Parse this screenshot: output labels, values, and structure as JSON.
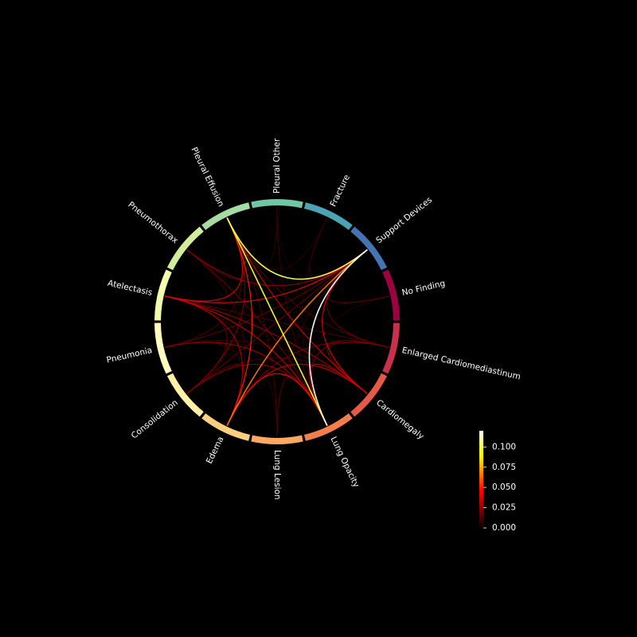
{
  "chart_data": {
    "type": "chord",
    "title": "",
    "nodes": [
      {
        "name": "No Finding",
        "color": "#9e0142"
      },
      {
        "name": "Enlarged Cardiomediastinum",
        "color": "#c9304b"
      },
      {
        "name": "Cardiomegaly",
        "color": "#e45a47"
      },
      {
        "name": "Lung Opacity",
        "color": "#f47e4b"
      },
      {
        "name": "Lung Lesion",
        "color": "#fba962"
      },
      {
        "name": "Edema",
        "color": "#fecf7e"
      },
      {
        "name": "Consolidation",
        "color": "#fff0a4"
      },
      {
        "name": "Pneumonia",
        "color": "#fffebe"
      },
      {
        "name": "Atelectasis",
        "color": "#f3fbad"
      },
      {
        "name": "Pneumothorax",
        "color": "#d3ee9b"
      },
      {
        "name": "Pleural Effusion",
        "color": "#a6dba4"
      },
      {
        "name": "Pleural Other",
        "color": "#71c7a4"
      },
      {
        "name": "Fracture",
        "color": "#4ba3b3"
      },
      {
        "name": "Support Devices",
        "color": "#4474b4"
      }
    ],
    "links": [
      {
        "source": "Lung Opacity",
        "target": "Support Devices",
        "value": 0.12
      },
      {
        "source": "Pleural Effusion",
        "target": "Support Devices",
        "value": 0.1
      },
      {
        "source": "Lung Opacity",
        "target": "Pleural Effusion",
        "value": 0.095
      },
      {
        "source": "Edema",
        "target": "Support Devices",
        "value": 0.065
      },
      {
        "source": "Edema",
        "target": "Pleural Effusion",
        "value": 0.05
      },
      {
        "source": "Edema",
        "target": "Lung Opacity",
        "value": 0.045
      },
      {
        "source": "Atelectasis",
        "target": "Support Devices",
        "value": 0.042
      },
      {
        "source": "Cardiomegaly",
        "target": "Support Devices",
        "value": 0.04
      },
      {
        "source": "Atelectasis",
        "target": "Pleural Effusion",
        "value": 0.038
      },
      {
        "source": "Cardiomegaly",
        "target": "Pleural Effusion",
        "value": 0.036
      },
      {
        "source": "Lung Opacity",
        "target": "Atelectasis",
        "value": 0.034
      },
      {
        "source": "Cardiomegaly",
        "target": "Edema",
        "value": 0.03
      },
      {
        "source": "Cardiomegaly",
        "target": "Lung Opacity",
        "value": 0.03
      },
      {
        "source": "Edema",
        "target": "Atelectasis",
        "value": 0.028
      },
      {
        "source": "Cardiomegaly",
        "target": "Atelectasis",
        "value": 0.026
      },
      {
        "source": "Lung Opacity",
        "target": "Pneumonia",
        "value": 0.024
      },
      {
        "source": "Lung Opacity",
        "target": "Consolidation",
        "value": 0.022
      },
      {
        "source": "Pneumothorax",
        "target": "Support Devices",
        "value": 0.022
      },
      {
        "source": "Consolidation",
        "target": "Pleural Effusion",
        "value": 0.02
      },
      {
        "source": "Enlarged Cardiomediastinum",
        "target": "Lung Opacity",
        "value": 0.018
      },
      {
        "source": "Enlarged Cardiomediastinum",
        "target": "Edema",
        "value": 0.018
      },
      {
        "source": "Enlarged Cardiomediastinum",
        "target": "Cardiomegaly",
        "value": 0.018
      },
      {
        "source": "Enlarged Cardiomediastinum",
        "target": "Support Devices",
        "value": 0.016
      },
      {
        "source": "Lung Opacity",
        "target": "Pneumothorax",
        "value": 0.016
      },
      {
        "source": "Pneumonia",
        "target": "Support Devices",
        "value": 0.015
      },
      {
        "source": "Consolidation",
        "target": "Support Devices",
        "value": 0.015
      },
      {
        "source": "Consolidation",
        "target": "Atelectasis",
        "value": 0.014
      },
      {
        "source": "Edema",
        "target": "Consolidation",
        "value": 0.014
      },
      {
        "source": "No Finding",
        "target": "Support Devices",
        "value": 0.014
      },
      {
        "source": "Pneumothorax",
        "target": "Pleural Effusion",
        "value": 0.013
      },
      {
        "source": "Lung Lesion",
        "target": "Lung Opacity",
        "value": 0.012
      },
      {
        "source": "Lung Lesion",
        "target": "Pleural Effusion",
        "value": 0.01
      },
      {
        "source": "Pneumonia",
        "target": "Pleural Effusion",
        "value": 0.01
      },
      {
        "source": "Pleural Other",
        "target": "Lung Opacity",
        "value": 0.008
      },
      {
        "source": "Fracture",
        "target": "Support Devices",
        "value": 0.008
      },
      {
        "source": "Fracture",
        "target": "Lung Opacity",
        "value": 0.006
      },
      {
        "source": "Pleural Other",
        "target": "Pleural Effusion",
        "value": 0.007
      },
      {
        "source": "Edema",
        "target": "Pneumonia",
        "value": 0.009
      },
      {
        "source": "Enlarged Cardiomediastinum",
        "target": "Pleural Effusion",
        "value": 0.012
      },
      {
        "source": "Enlarged Cardiomediastinum",
        "target": "Atelectasis",
        "value": 0.011
      },
      {
        "source": "Cardiomegaly",
        "target": "Consolidation",
        "value": 0.01
      },
      {
        "source": "Cardiomegaly",
        "target": "Pneumonia",
        "value": 0.008
      },
      {
        "source": "Edema",
        "target": "Pneumothorax",
        "value": 0.007
      },
      {
        "source": "Lung Lesion",
        "target": "Support Devices",
        "value": 0.006
      },
      {
        "source": "Lung Lesion",
        "target": "Atelectasis",
        "value": 0.006
      },
      {
        "source": "No Finding",
        "target": "Lung Opacity",
        "value": 0.004
      },
      {
        "source": "Fracture",
        "target": "Pleural Effusion",
        "value": 0.005
      },
      {
        "source": "Pleural Other",
        "target": "Support Devices",
        "value": 0.004
      },
      {
        "source": "Atelectasis",
        "target": "Pneumothorax",
        "value": 0.006
      },
      {
        "source": "Consolidation",
        "target": "Pneumonia",
        "value": 0.007
      }
    ],
    "colorbar": {
      "colormap": "hot",
      "ticks": [
        "0.000",
        "0.025",
        "0.050",
        "0.075",
        "0.100"
      ],
      "tick_values": [
        0.0,
        0.025,
        0.05,
        0.075,
        0.1
      ],
      "range": [
        0.0,
        0.12
      ]
    },
    "legend_position": "bottom-right",
    "background": "#000000"
  }
}
